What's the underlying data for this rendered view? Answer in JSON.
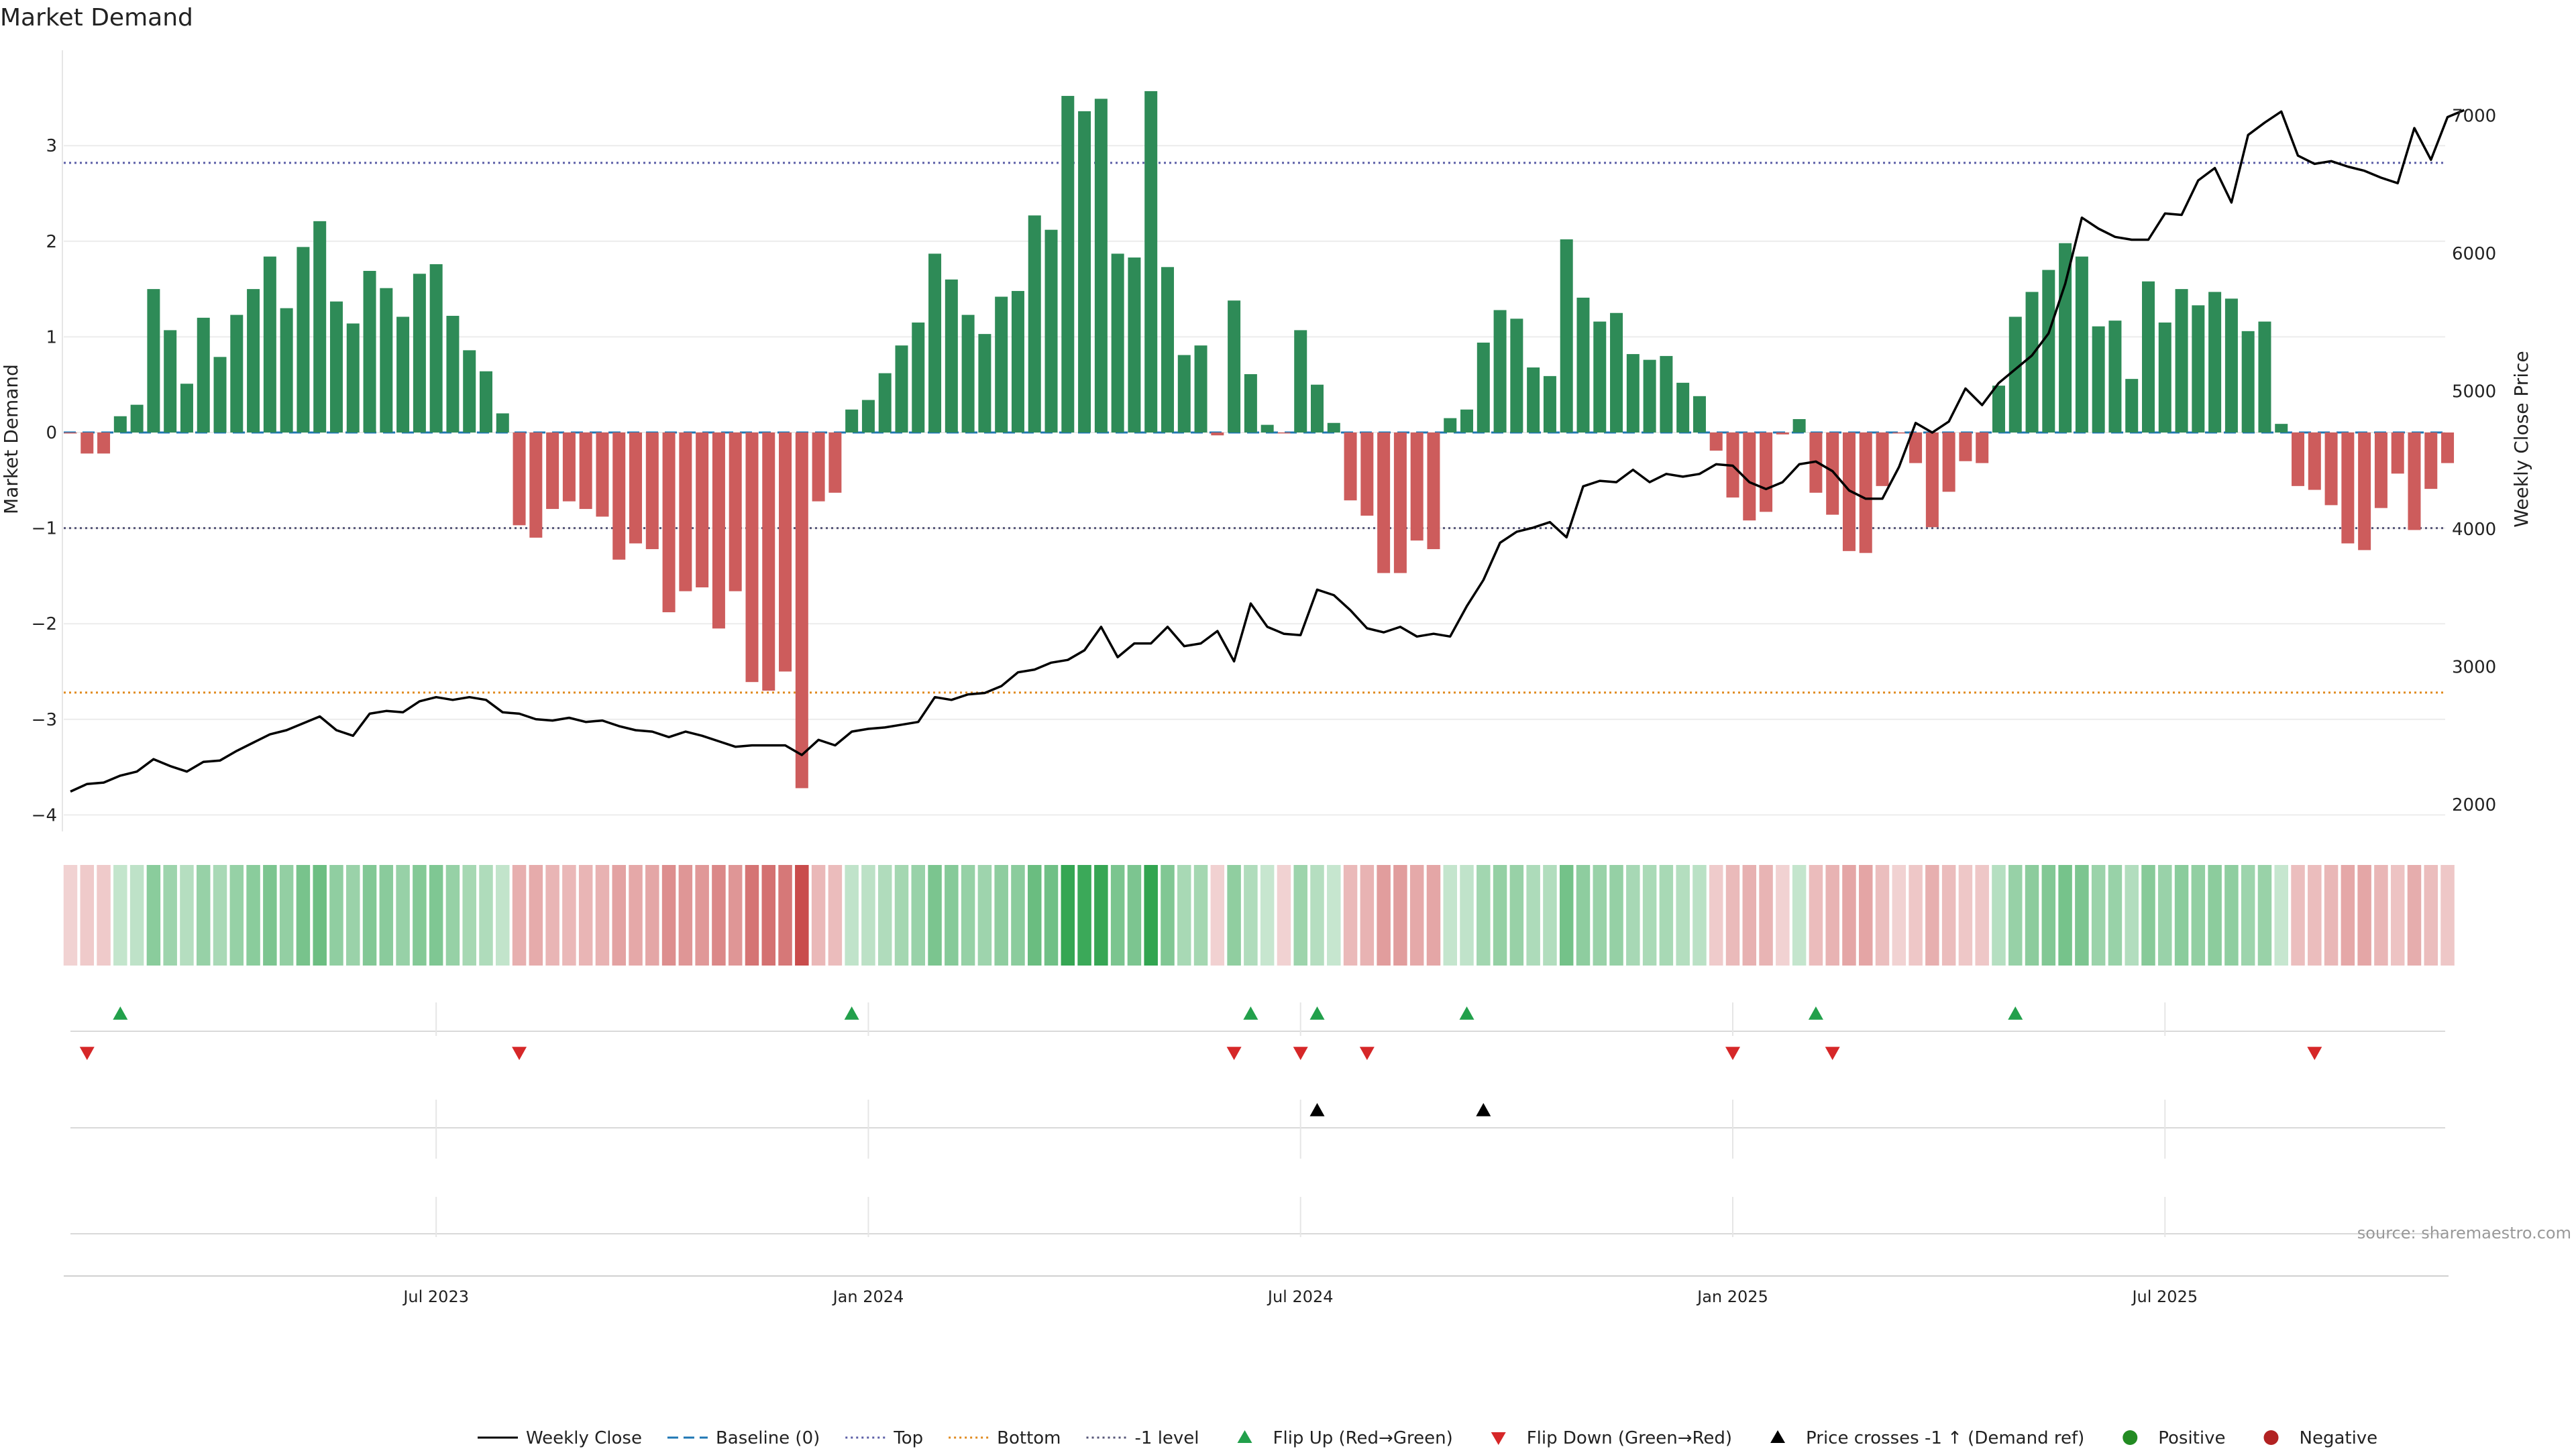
{
  "chart_data": {
    "type": "bar",
    "title": "Market Demand",
    "ylabel": "Market Demand",
    "y2label": "Weekly Close Price",
    "ylim": [
      -4,
      3.8
    ],
    "y2lim": [
      2000,
      7400
    ],
    "yticks": [
      3,
      2,
      1,
      0,
      -1,
      -2,
      -3,
      -4
    ],
    "y2ticks": [
      7000,
      6000,
      5000,
      4000,
      3000,
      2000
    ],
    "xticks": [
      {
        "label": "Jul 2023",
        "week": 22
      },
      {
        "label": "Jan 2024",
        "week": 48
      },
      {
        "label": "Jul 2024",
        "week": 74
      },
      {
        "label": "Jan 2025",
        "week": 100
      },
      {
        "label": "Jul 2025",
        "week": 126
      }
    ],
    "reference_lines": {
      "top": 2.82,
      "bottom": -2.72,
      "minus_one": -1
    },
    "demand": [
      -0.01,
      -0.22,
      -0.22,
      0.17,
      0.29,
      1.5,
      1.07,
      0.51,
      1.2,
      0.79,
      1.23,
      1.5,
      1.84,
      1.3,
      1.94,
      2.21,
      1.37,
      1.14,
      1.69,
      1.51,
      1.21,
      1.66,
      1.76,
      1.22,
      0.86,
      0.64,
      0.2,
      -0.97,
      -1.1,
      -0.8,
      -0.72,
      -0.8,
      -0.88,
      -1.33,
      -1.16,
      -1.22,
      -1.88,
      -1.66,
      -1.62,
      -2.05,
      -1.66,
      -2.61,
      -2.7,
      -2.5,
      -3.72,
      -0.72,
      -0.63,
      0.24,
      0.34,
      0.62,
      0.91,
      1.15,
      1.87,
      1.6,
      1.23,
      1.03,
      1.42,
      1.48,
      2.27,
      2.12,
      3.52,
      3.36,
      3.49,
      1.87,
      1.83,
      3.57,
      1.73,
      0.81,
      0.91,
      -0.03,
      1.38,
      0.61,
      0.08,
      -0.01,
      1.07,
      0.5,
      0.1,
      -0.71,
      -0.87,
      -1.47,
      -1.47,
      -1.13,
      -1.22,
      0.15,
      0.24,
      0.94,
      1.28,
      1.19,
      0.68,
      0.59,
      2.02,
      1.41,
      1.16,
      1.25,
      0.82,
      0.76,
      0.8,
      0.52,
      0.38,
      -0.19,
      -0.68,
      -0.92,
      -0.83,
      -0.02,
      0.14,
      -0.63,
      -0.86,
      -1.24,
      -1.26,
      -0.56,
      -0.01,
      -0.32,
      -0.99,
      -0.62,
      -0.3,
      -0.32,
      0.49,
      1.21,
      1.47,
      1.7,
      1.98,
      1.84,
      1.11,
      1.17,
      0.56,
      1.58,
      1.15,
      1.5,
      1.33,
      1.47,
      1.4,
      1.06,
      1.16,
      0.09,
      -0.56,
      -0.6,
      -0.76,
      -1.16,
      -1.23,
      -0.79,
      -0.43,
      -1.02,
      -0.59,
      -0.32
    ],
    "close": [
      2095,
      2150,
      2160,
      2210,
      2240,
      2330,
      2280,
      2240,
      2310,
      2320,
      2390,
      2450,
      2510,
      2540,
      2590,
      2640,
      2540,
      2500,
      2660,
      2680,
      2670,
      2750,
      2780,
      2760,
      2780,
      2760,
      2670,
      2660,
      2620,
      2610,
      2630,
      2600,
      2610,
      2570,
      2540,
      2530,
      2490,
      2530,
      2500,
      2460,
      2420,
      2430,
      2430,
      2430,
      2360,
      2470,
      2430,
      2530,
      2550,
      2560,
      2580,
      2600,
      2780,
      2760,
      2800,
      2810,
      2860,
      2960,
      2980,
      3030,
      3050,
      3120,
      3290,
      3070,
      3170,
      3170,
      3290,
      3150,
      3170,
      3260,
      3040,
      3460,
      3290,
      3240,
      3230,
      3560,
      3520,
      3410,
      3280,
      3250,
      3290,
      3220,
      3240,
      3220,
      3440,
      3630,
      3900,
      3980,
      4010,
      4050,
      3940,
      4310,
      4350,
      4340,
      4430,
      4340,
      4400,
      4380,
      4400,
      4470,
      4460,
      4340,
      4290,
      4340,
      4470,
      4490,
      4420,
      4280,
      4220,
      4220,
      4450,
      4770,
      4700,
      4780,
      5020,
      4900,
      5060,
      5160,
      5260,
      5420,
      5780,
      6260,
      6180,
      6120,
      6100,
      6100,
      6290,
      6280,
      6530,
      6620,
      6370,
      6860,
      6950,
      7030,
      6710,
      6650,
      6670,
      6630,
      6600,
      6550,
      6510,
      6910,
      6680,
      6990,
      7040
    ],
    "flip_up_weeks": [
      3,
      47,
      71,
      75,
      84,
      105,
      117
    ],
    "flip_down_weeks": [
      1,
      27,
      70,
      74,
      78,
      100,
      106,
      135
    ],
    "price_cross_weeks": [
      75,
      85
    ],
    "heat_max": 3.72,
    "colors": {
      "positive_bar": "#2e8b57",
      "negative_bar": "#cd5c5c",
      "price_line": "#000000",
      "baseline": "#1f77b4",
      "top_line": "#5b5ea6",
      "bottom_line": "#e08a1e",
      "minus_one_line": "#555577",
      "flip_up": "#22a04b",
      "flip_down": "#d62728",
      "cross": "#000000",
      "positive_dot": "#228b22",
      "negative_dot": "#b22222",
      "heat_pos": "#2ca24c",
      "heat_neg": "#c94c4c"
    },
    "legend": [
      {
        "label": "Weekly Close",
        "kind": "solid"
      },
      {
        "label": "Baseline (0)",
        "kind": "dashed"
      },
      {
        "label": "Top",
        "kind": "dotted-blue"
      },
      {
        "label": "Bottom",
        "kind": "dotted-orange"
      },
      {
        "label": "-1 level",
        "kind": "dotted-gray"
      },
      {
        "label": "Flip Up (Red→Green)",
        "kind": "tri-up-green"
      },
      {
        "label": "Flip Down (Green→Red)",
        "kind": "tri-down-red"
      },
      {
        "label": "Price crosses -1 ↑ (Demand ref)",
        "kind": "tri-up-black"
      },
      {
        "label": "Positive",
        "kind": "dot-green"
      },
      {
        "label": "Negative",
        "kind": "dot-red"
      }
    ],
    "source": "source: sharemaestro.com"
  }
}
